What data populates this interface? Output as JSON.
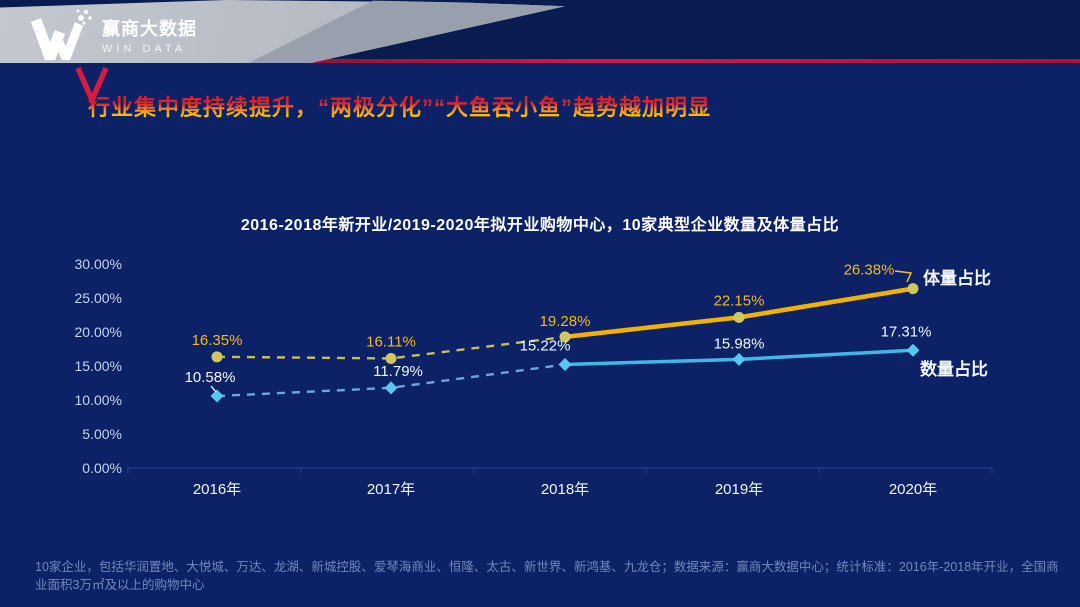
{
  "brand": {
    "logo_icon": "win-data-w-logo",
    "name_cn": "赢商大数据",
    "name_en": "WIN DATA"
  },
  "headline": "行业集中度持续提升，“两极分化”“大鱼吞小鱼”趋势越加明显",
  "chart_data": {
    "type": "line",
    "title": "2016-2018年新开业/2019-2020年拟开业购物中心，10家典型企业数量及体量占比",
    "categories": [
      "2016年",
      "2017年",
      "2018年",
      "2019年",
      "2020年"
    ],
    "series": [
      {
        "name": "体量占比",
        "values": [
          16.35,
          16.11,
          19.28,
          22.15,
          26.38
        ],
        "color": "#f2b300",
        "dash_color": "#c9bd58",
        "marker_color": "#cfc75f",
        "label_color": "#f3ba20",
        "marker": "circle",
        "dashed_until_index": 2
      },
      {
        "name": "数量占比",
        "values": [
          10.58,
          11.79,
          15.22,
          15.98,
          17.31
        ],
        "color": "#41b8e4",
        "dash_color": "#6fa6da",
        "marker_color": "#58c6f0",
        "label_color": "#f2f6fd",
        "marker": "diamond",
        "dashed_until_index": 2
      }
    ],
    "ylim": [
      0,
      30
    ],
    "ytick_step": 5,
    "yticks": [
      "0.00%",
      "5.00%",
      "10.00%",
      "15.00%",
      "20.00%",
      "25.00%",
      "30.00%"
    ],
    "grid": false,
    "legend_position": "right-of-last-point",
    "line_style_note": "dashed before 2018, solid 2018-2020"
  },
  "footer": {
    "note": "10家企业，包括华润置地、大悦城、万达、龙湖、新城控股、爱琴海商业、恒隆、太古、新世界、新鸿基、九龙仓；数据来源：赢商大数据中心；统计标准：2016年-2018年开业，全国商业面积3万㎡及以上的购物中心"
  },
  "colors": {
    "background": "#0c2166",
    "accent_red": "#d51c3f",
    "gold": "#f2b300",
    "sky_blue": "#41b8e4",
    "banner_gray": "#b7bcc5",
    "footer_text": "#7487bd"
  }
}
